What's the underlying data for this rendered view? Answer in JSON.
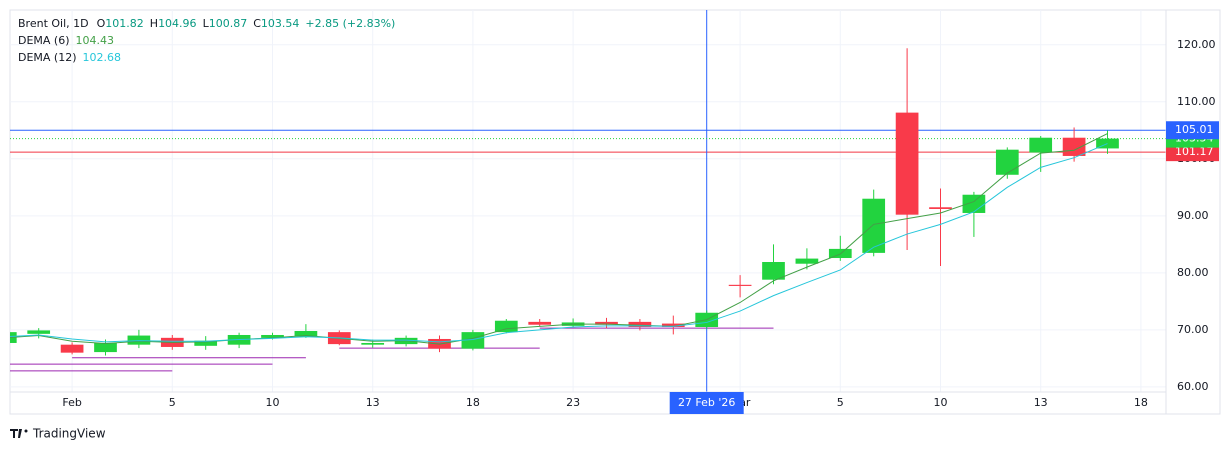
{
  "chart_data": {
    "type": "candlestick",
    "title": "Brent Oil, 1D",
    "ohlc_labels": [
      "O",
      "H",
      "L",
      "C"
    ],
    "change": "+2.85 (+2.83%)",
    "categories": [
      null,
      null,
      "Feb",
      null,
      null,
      "5",
      null,
      null,
      "10",
      null,
      null,
      "13",
      null,
      null,
      "18",
      null,
      null,
      "23",
      null,
      null,
      null,
      null,
      "Mar",
      null,
      null,
      "5",
      null,
      null,
      "10",
      null,
      null,
      "13",
      null,
      null,
      "18"
    ],
    "open": [
      67.7,
      69.3,
      67.4,
      66.1,
      67.4,
      68.6,
      67.2,
      67.4,
      68.6,
      68.8,
      69.6,
      67.4,
      67.5,
      68.4,
      66.7,
      69.6,
      71.4,
      70.7,
      71.4,
      71.4,
      71.1,
      70.5,
      77.9,
      78.8,
      81.6,
      82.6,
      83.5,
      108.1,
      91.5,
      90.5,
      97.2,
      101.1,
      103.7,
      101.82,
      null
    ],
    "high": [
      70.0,
      70.3,
      67.8,
      68.3,
      70.0,
      69.1,
      68.9,
      69.5,
      69.5,
      71.0,
      69.9,
      68.3,
      69.0,
      69.0,
      70.0,
      71.9,
      71.9,
      72.0,
      72.1,
      71.9,
      72.5,
      73.4,
      79.6,
      85.0,
      84.3,
      86.5,
      94.6,
      119.4,
      94.8,
      94.2,
      102.0,
      104.0,
      105.5,
      104.96,
      null
    ],
    "low": [
      67.0,
      68.5,
      65.7,
      65.5,
      66.8,
      66.5,
      66.5,
      66.8,
      68.3,
      68.6,
      67.3,
      66.9,
      67.1,
      66.1,
      66.4,
      69.4,
      70.6,
      70.4,
      70.3,
      69.9,
      69.2,
      70.2,
      75.7,
      78.0,
      80.6,
      82.1,
      82.9,
      84.0,
      81.2,
      86.3,
      96.5,
      97.7,
      99.5,
      100.87,
      null
    ],
    "close": [
      69.6,
      69.9,
      66.0,
      67.7,
      69.0,
      67.0,
      68.1,
      69.1,
      69.1,
      69.8,
      67.5,
      67.7,
      68.6,
      66.7,
      69.6,
      71.6,
      70.9,
      71.3,
      70.9,
      70.5,
      70.5,
      73.0,
      77.7,
      81.9,
      82.5,
      84.2,
      93.0,
      90.2,
      91.2,
      93.7,
      101.6,
      103.7,
      100.5,
      103.54,
      null
    ],
    "up_color": "#22d33f",
    "down_color": "#f93a4a",
    "series": [
      {
        "name": "DEMA (6)",
        "color": "#43a047",
        "values": [
          68.6,
          69.0,
          68.0,
          67.6,
          68.0,
          67.8,
          67.9,
          68.3,
          68.6,
          69.0,
          68.5,
          68.0,
          68.1,
          67.5,
          68.5,
          70.2,
          70.6,
          71.0,
          71.0,
          70.8,
          70.6,
          71.8,
          74.8,
          78.6,
          81.0,
          83.3,
          88.5,
          89.5,
          90.5,
          92.5,
          97.5,
          101.0,
          101.5,
          104.43,
          null
        ]
      },
      {
        "name": "DEMA (12)",
        "color": "#26c6da",
        "values": [
          68.8,
          69.1,
          68.4,
          67.9,
          68.1,
          68.0,
          68.0,
          68.3,
          68.5,
          68.8,
          68.6,
          68.2,
          68.2,
          67.9,
          68.3,
          69.5,
          70.0,
          70.5,
          70.7,
          70.7,
          70.6,
          71.3,
          73.3,
          76.0,
          78.3,
          80.5,
          84.5,
          86.8,
          88.5,
          90.7,
          95.0,
          98.5,
          100.2,
          102.68,
          null
        ]
      }
    ],
    "ylim": [
      59.1,
      126.1
    ],
    "yticks": [
      {
        "value": 60,
        "label": "60.00"
      },
      {
        "value": 70,
        "label": "70.00"
      },
      {
        "value": 80,
        "label": "80.00"
      },
      {
        "value": 90,
        "label": "90.00"
      },
      {
        "value": 100,
        "label": "100.00"
      },
      {
        "value": 110,
        "label": "110.00"
      },
      {
        "value": 120,
        "label": "120.00"
      }
    ],
    "grid": true,
    "crosshair": {
      "index": 21,
      "label": "27 Feb '26",
      "value": 105.01,
      "color": "#2962ff"
    },
    "horizontal_line": {
      "value": 101.17,
      "color": "#f23645"
    },
    "drawings": [
      {
        "value": 62.8,
        "from": 0,
        "to": 5,
        "color": "#9c27b0"
      },
      {
        "value": 64.0,
        "from": 0,
        "to": 8,
        "color": "#9c27b0"
      },
      {
        "value": 65.1,
        "from": 2,
        "to": 9,
        "color": "#9c27b0"
      },
      {
        "value": 66.8,
        "from": 10,
        "to": 16,
        "color": "#9c27b0"
      },
      {
        "value": 70.3,
        "from": 16,
        "to": 23,
        "color": "#9c27b0"
      }
    ]
  },
  "brand": "TradingView"
}
